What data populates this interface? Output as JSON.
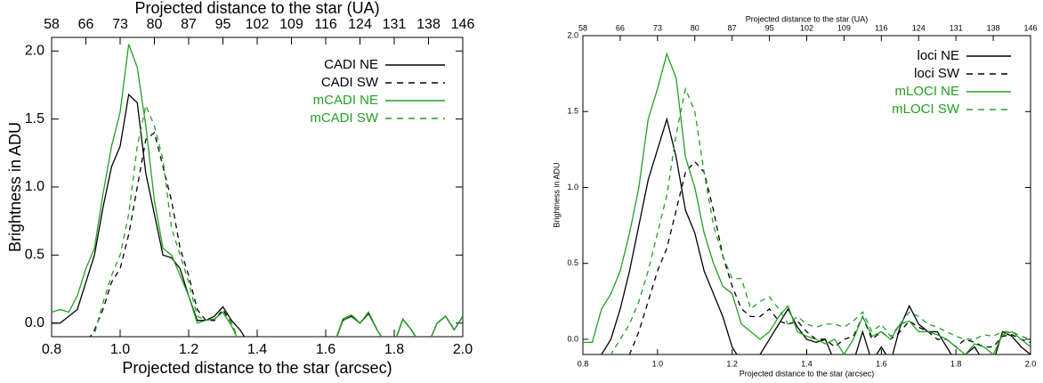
{
  "chart_data": [
    {
      "type": "line",
      "xlabel": "Projected distance to the star (arcsec)",
      "x2label": "Projected distance to the star (UA)",
      "ylabel": "Brightness in ADU",
      "xlim": [
        0.8,
        2.0
      ],
      "xticks": [
        0.8,
        {
          "value": 1.0,
          "label": "1.0"
        },
        1.2,
        1.4,
        1.6,
        1.8,
        {
          "value": 2.0,
          "label": "2.0"
        }
      ],
      "x2ticks": [
        {
          "value": 0.8,
          "label": "58"
        },
        {
          "value": 0.9,
          "label": "66"
        },
        {
          "value": 1.0,
          "label": "73"
        },
        {
          "value": 1.1,
          "label": "80"
        },
        {
          "value": 1.2,
          "label": "87"
        },
        {
          "value": 1.3,
          "label": "95"
        },
        {
          "value": 1.4,
          "label": "102"
        },
        {
          "value": 1.5,
          "label": "109"
        },
        {
          "value": 1.6,
          "label": "116"
        },
        {
          "value": 1.7,
          "label": "124"
        },
        {
          "value": 1.8,
          "label": "131"
        },
        {
          "value": 1.9,
          "label": "138"
        },
        {
          "value": 2.0,
          "label": "146"
        }
      ],
      "ylim": [
        -0.1,
        2.1
      ],
      "yticks": [
        {
          "value": 0.0,
          "label": "0.0"
        },
        0.5,
        {
          "value": 1.0,
          "label": "1.0"
        },
        1.5,
        {
          "value": 2.0,
          "label": "2.0"
        }
      ],
      "legend": "upper right",
      "x": [
        0.8,
        0.825,
        0.85,
        0.875,
        0.9,
        0.925,
        0.95,
        0.975,
        1.0,
        1.025,
        1.05,
        1.075,
        1.1,
        1.125,
        1.15,
        1.175,
        1.2,
        1.225,
        1.25,
        1.275,
        1.3,
        1.325,
        1.35,
        1.375,
        1.4,
        1.425,
        1.45,
        1.475,
        1.5,
        1.525,
        1.55,
        1.575,
        1.6,
        1.625,
        1.65,
        1.675,
        1.7,
        1.725,
        1.75,
        1.775,
        1.8,
        1.825,
        1.85,
        1.875,
        1.9,
        1.925,
        1.95,
        1.975,
        2.0
      ],
      "series": [
        {
          "name": "CADI NE",
          "color": "#000000",
          "dashed": false,
          "values": [
            0.0,
            0.0,
            0.05,
            0.1,
            0.3,
            0.5,
            0.85,
            1.15,
            1.3,
            1.68,
            1.62,
            1.1,
            0.8,
            0.5,
            0.48,
            0.4,
            0.2,
            0.02,
            0.02,
            0.05,
            0.12,
            0.02,
            -0.05,
            -0.15,
            -0.15,
            -0.15,
            -0.15,
            -0.15,
            -0.15,
            -0.15,
            -0.15,
            -0.15,
            -0.15,
            -0.15,
            0.02,
            0.05,
            0.0,
            0.07,
            -0.05,
            -0.15,
            -0.15,
            0.03,
            -0.05,
            -0.15,
            -0.15,
            0.0,
            0.05,
            -0.05,
            0.05
          ]
        },
        {
          "name": "CADI SW",
          "color": "#000000",
          "dashed": true,
          "values": [
            -0.15,
            -0.15,
            -0.15,
            -0.15,
            -0.15,
            -0.05,
            0.1,
            0.3,
            0.4,
            0.65,
            1.0,
            1.35,
            1.4,
            1.15,
            0.9,
            0.55,
            0.35,
            0.1,
            0.02,
            0.02,
            0.1,
            0.0,
            -0.15,
            -0.15,
            -0.15,
            -0.15,
            -0.15,
            -0.15,
            -0.15,
            -0.15,
            -0.15,
            -0.15,
            -0.15,
            -0.15,
            0.02,
            0.06,
            0.0,
            0.08,
            -0.05,
            -0.15,
            -0.15,
            0.03,
            -0.05,
            -0.15,
            -0.15,
            0.0,
            0.05,
            -0.05,
            0.05
          ]
        },
        {
          "name": "mCADI NE",
          "color": "#22a022",
          "dashed": false,
          "values": [
            0.08,
            0.1,
            0.08,
            0.2,
            0.4,
            0.55,
            0.95,
            1.3,
            1.55,
            2.05,
            1.88,
            1.45,
            0.9,
            0.55,
            0.5,
            0.35,
            0.2,
            0.0,
            0.02,
            0.03,
            0.08,
            -0.02,
            -0.15,
            -0.15,
            -0.15,
            -0.15,
            -0.15,
            -0.15,
            -0.15,
            -0.15,
            -0.15,
            -0.15,
            -0.15,
            -0.15,
            0.03,
            0.06,
            0.0,
            0.08,
            -0.05,
            -0.15,
            -0.15,
            0.03,
            -0.05,
            -0.15,
            -0.15,
            0.0,
            0.05,
            -0.05,
            0.05
          ]
        },
        {
          "name": "mCADI SW",
          "color": "#22a022",
          "dashed": true,
          "values": [
            -0.15,
            -0.15,
            -0.15,
            -0.15,
            -0.15,
            -0.08,
            0.15,
            0.35,
            0.5,
            0.8,
            1.3,
            1.6,
            1.45,
            1.2,
            0.7,
            0.5,
            0.3,
            0.05,
            0.02,
            0.03,
            0.08,
            0.0,
            -0.15,
            -0.15,
            -0.15,
            -0.15,
            -0.15,
            -0.15,
            -0.15,
            -0.15,
            -0.15,
            -0.15,
            -0.15,
            -0.15,
            0.02,
            0.06,
            0.0,
            0.08,
            -0.05,
            -0.15,
            -0.15,
            0.03,
            -0.05,
            -0.15,
            -0.15,
            0.0,
            0.05,
            -0.05,
            0.05
          ]
        }
      ]
    },
    {
      "type": "line",
      "xlabel": "Projected distance to the star (arcsec)",
      "x2label": "Projected distance to the star (UA)",
      "ylabel": "Brightness in ADU",
      "xlim": [
        0.8,
        2.0
      ],
      "xticks": [
        0.8,
        {
          "value": 1.0,
          "label": "1.0"
        },
        1.2,
        1.4,
        1.6,
        1.8,
        {
          "value": 2.0,
          "label": "2.0"
        }
      ],
      "x2ticks": [
        {
          "value": 0.8,
          "label": "58"
        },
        {
          "value": 0.9,
          "label": "66"
        },
        {
          "value": 1.0,
          "label": "73"
        },
        {
          "value": 1.1,
          "label": "80"
        },
        {
          "value": 1.2,
          "label": "87"
        },
        {
          "value": 1.3,
          "label": "95"
        },
        {
          "value": 1.4,
          "label": "102"
        },
        {
          "value": 1.5,
          "label": "109"
        },
        {
          "value": 1.6,
          "label": "116"
        },
        {
          "value": 1.7,
          "label": "124"
        },
        {
          "value": 1.8,
          "label": "131"
        },
        {
          "value": 1.9,
          "label": "138"
        },
        {
          "value": 2.0,
          "label": "146"
        }
      ],
      "ylim": [
        -0.1,
        2.0
      ],
      "yticks": [
        {
          "value": 0.0,
          "label": "0.0"
        },
        0.5,
        {
          "value": 1.0,
          "label": "1.0"
        },
        1.5,
        {
          "value": 2.0,
          "label": "2.0"
        }
      ],
      "legend": "upper right",
      "x": [
        0.8,
        0.825,
        0.85,
        0.875,
        0.9,
        0.925,
        0.95,
        0.975,
        1.0,
        1.025,
        1.05,
        1.075,
        1.1,
        1.125,
        1.15,
        1.175,
        1.2,
        1.225,
        1.25,
        1.275,
        1.3,
        1.325,
        1.35,
        1.375,
        1.4,
        1.425,
        1.45,
        1.475,
        1.5,
        1.525,
        1.55,
        1.575,
        1.6,
        1.625,
        1.65,
        1.675,
        1.7,
        1.725,
        1.75,
        1.775,
        1.8,
        1.825,
        1.85,
        1.875,
        1.9,
        1.925,
        1.95,
        1.975,
        2.0
      ],
      "series": [
        {
          "name": "loci NE",
          "color": "#000000",
          "dashed": false,
          "values": [
            -0.15,
            -0.15,
            -0.1,
            0.0,
            0.2,
            0.45,
            0.75,
            1.05,
            1.25,
            1.45,
            1.2,
            0.85,
            0.7,
            0.45,
            0.3,
            0.15,
            -0.05,
            -0.15,
            -0.15,
            -0.1,
            0.0,
            0.1,
            0.2,
            0.08,
            0.0,
            -0.02,
            0.0,
            -0.15,
            -0.15,
            -0.15,
            0.05,
            -0.15,
            -0.05,
            -0.15,
            0.08,
            0.22,
            0.1,
            0.05,
            0.05,
            -0.05,
            -0.15,
            -0.1,
            -0.05,
            -0.15,
            -0.15,
            0.05,
            0.02,
            -0.05,
            -0.1
          ]
        },
        {
          "name": "loci SW",
          "color": "#000000",
          "dashed": true,
          "values": [
            -0.15,
            -0.15,
            -0.15,
            -0.15,
            -0.15,
            -0.1,
            0.05,
            0.25,
            0.45,
            0.6,
            0.85,
            1.1,
            1.17,
            1.1,
            0.85,
            0.55,
            0.35,
            0.2,
            0.15,
            0.15,
            0.2,
            0.12,
            0.1,
            0.12,
            0.05,
            0.0,
            0.0,
            -0.05,
            0.0,
            0.02,
            0.15,
            0.0,
            0.05,
            0.0,
            0.05,
            0.12,
            0.08,
            0.05,
            0.0,
            0.0,
            -0.05,
            0.0,
            -0.02,
            -0.05,
            -0.05,
            0.02,
            0.03,
            0.0,
            -0.02
          ]
        },
        {
          "name": "mLOCI NE",
          "color": "#22a022",
          "dashed": false,
          "values": [
            -0.02,
            -0.02,
            0.2,
            0.3,
            0.45,
            0.7,
            1.0,
            1.45,
            1.65,
            1.88,
            1.72,
            1.2,
            1.0,
            0.7,
            0.5,
            0.35,
            0.3,
            0.1,
            0.05,
            0.0,
            0.05,
            0.15,
            0.22,
            0.05,
            0.02,
            0.0,
            -0.03,
            0.0,
            -0.1,
            0.0,
            0.15,
            0.02,
            0.05,
            0.0,
            0.1,
            0.12,
            0.05,
            0.05,
            0.03,
            0.0,
            -0.05,
            -0.1,
            -0.03,
            -0.05,
            -0.1,
            0.03,
            0.05,
            0.0,
            -0.05
          ]
        },
        {
          "name": "mLOCI SW",
          "color": "#22a022",
          "dashed": true,
          "values": [
            -0.15,
            -0.15,
            -0.15,
            -0.1,
            0.0,
            0.1,
            0.25,
            0.45,
            0.7,
            0.95,
            1.35,
            1.65,
            1.5,
            1.1,
            0.75,
            0.55,
            0.4,
            0.4,
            0.2,
            0.25,
            0.28,
            0.2,
            0.1,
            0.15,
            0.1,
            0.08,
            0.1,
            0.1,
            0.08,
            0.12,
            0.18,
            0.05,
            0.1,
            0.02,
            0.1,
            0.18,
            0.15,
            0.1,
            0.08,
            0.05,
            0.02,
            0.0,
            0.0,
            0.03,
            0.02,
            0.05,
            0.05,
            0.02,
            0.0
          ]
        }
      ]
    }
  ]
}
